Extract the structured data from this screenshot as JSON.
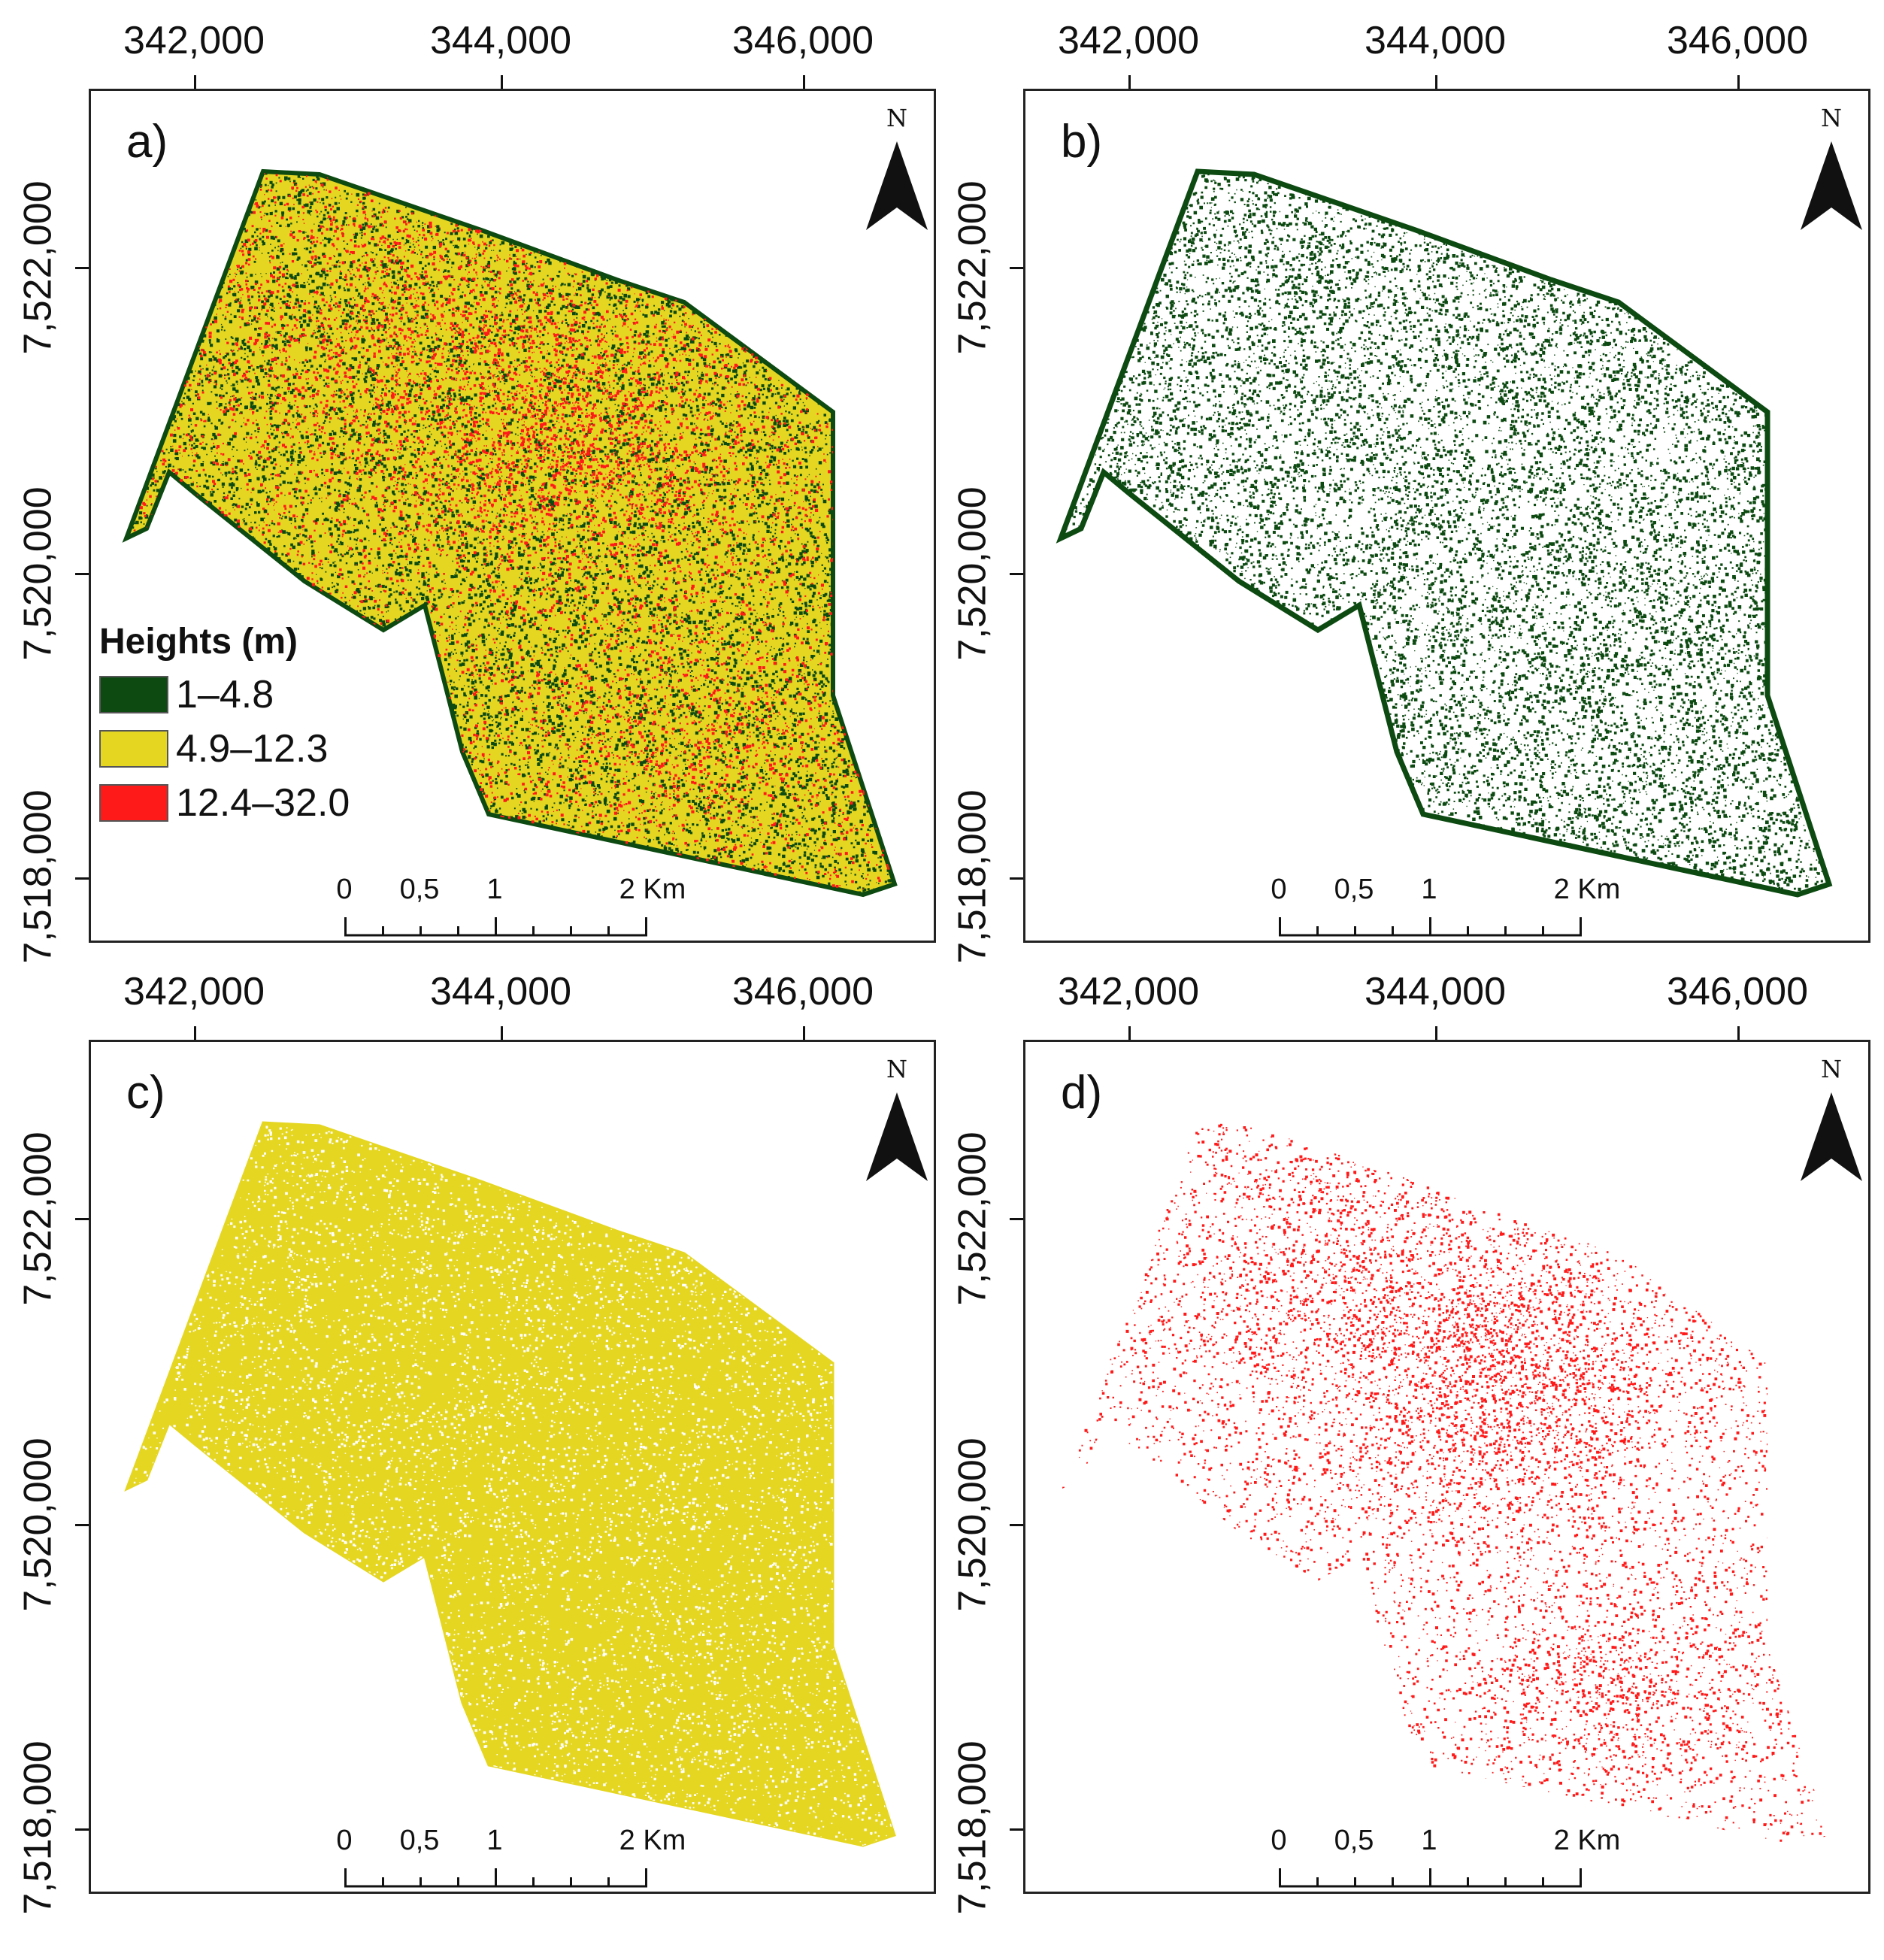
{
  "figure": {
    "panels": [
      {
        "id": "a",
        "label": "a)",
        "mode": "all"
      },
      {
        "id": "b",
        "label": "b)",
        "mode": "low"
      },
      {
        "id": "c",
        "label": "c)",
        "mode": "mid"
      },
      {
        "id": "d",
        "label": "d)",
        "mode": "high"
      }
    ],
    "x_ticks": [
      "342,000",
      "344,000",
      "346,000"
    ],
    "y_ticks": [
      "7,522,000",
      "7,520,000",
      "7,518,000"
    ],
    "north_label": "N",
    "scale_labels": [
      "0",
      "0,5",
      "1",
      "2 Km"
    ]
  },
  "legend": {
    "title": "Heights (m)",
    "items": [
      {
        "label": "1–4.8",
        "color": "#0d4a12"
      },
      {
        "label": "4.9–12.3",
        "color": "#e5d622"
      },
      {
        "label": "12.4–32.0",
        "color": "#ff1a1a"
      }
    ]
  },
  "colors": {
    "low": "#0d4a12",
    "mid": "#e5d622",
    "high": "#ff1a1a",
    "frame": "#222222"
  }
}
